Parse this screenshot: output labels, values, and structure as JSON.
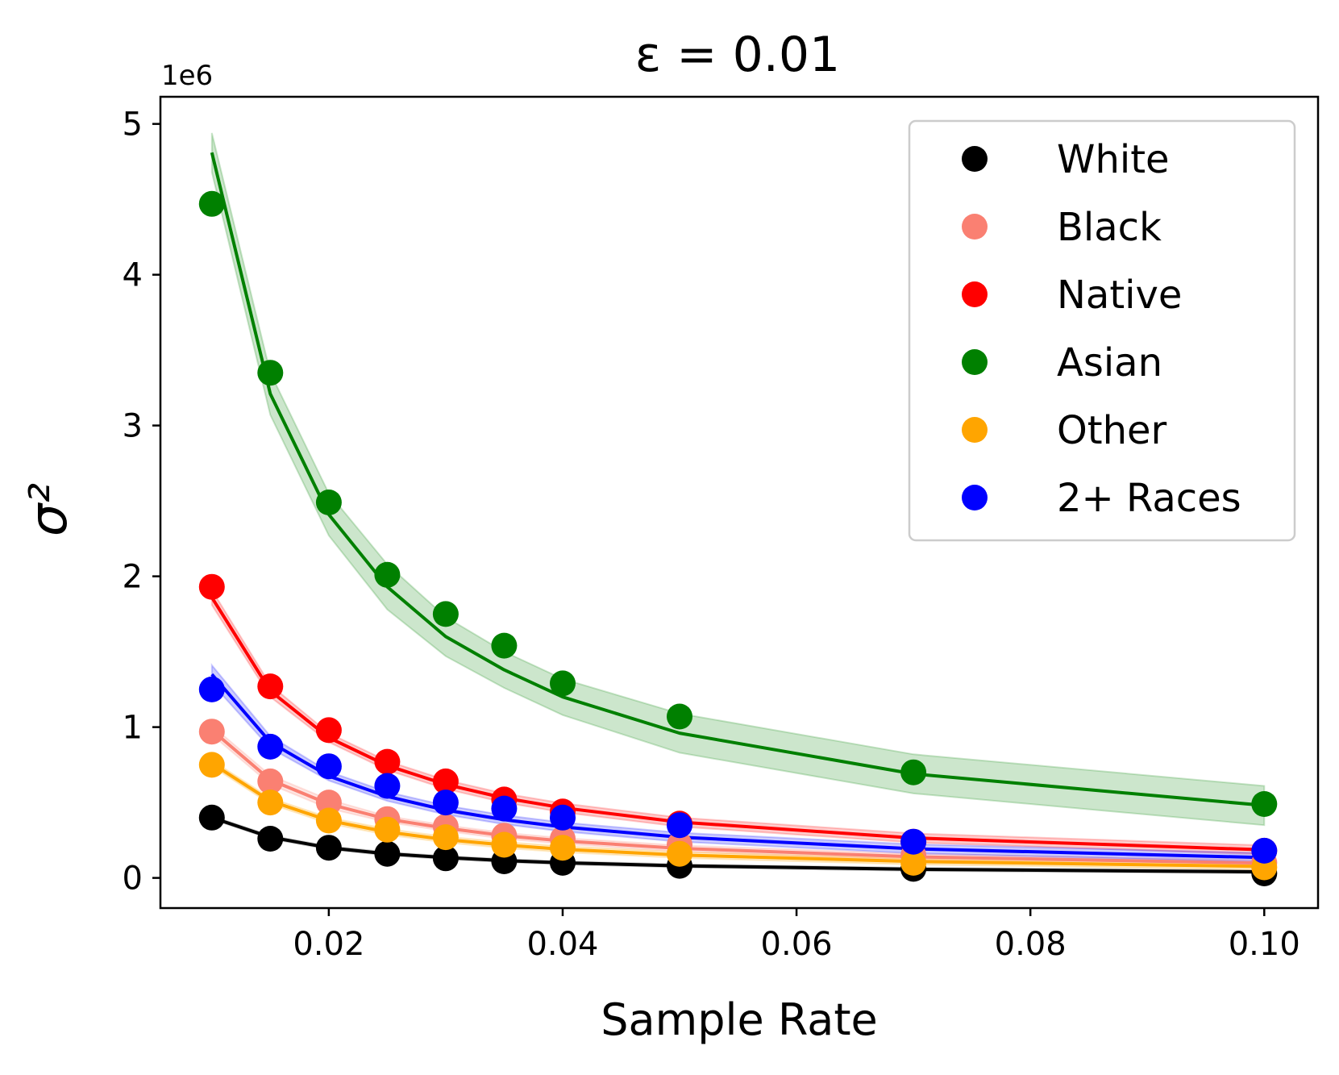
{
  "chart_data": {
    "type": "line",
    "title": "ε = 0.01",
    "xlabel": "Sample Rate",
    "ylabel": "σ²",
    "y_offset_label": "1e6",
    "xlim": [
      0.0056,
      0.1046
    ],
    "ylim": [
      -0.2,
      5.18
    ],
    "xticks": [
      0.02,
      0.04,
      0.06,
      0.08,
      0.1
    ],
    "xtick_labels": [
      "0.02",
      "0.04",
      "0.06",
      "0.08",
      "0.10"
    ],
    "yticks": [
      0,
      1,
      2,
      3,
      4,
      5
    ],
    "ytick_labels": [
      "0",
      "1",
      "2",
      "3",
      "4",
      "5"
    ],
    "legend_position": "top-right",
    "x": [
      0.01,
      0.015,
      0.02,
      0.025,
      0.03,
      0.035,
      0.04,
      0.05,
      0.07,
      0.1
    ],
    "series": [
      {
        "name": "White",
        "color": "#000000",
        "points": [
          0.4,
          0.26,
          0.2,
          0.16,
          0.13,
          0.11,
          0.1,
          0.08,
          0.06,
          0.03
        ],
        "fit": [
          0.4,
          0.27,
          0.2,
          0.16,
          0.135,
          0.115,
          0.1,
          0.08,
          0.057,
          0.04
        ],
        "band": [
          0.01,
          0.01,
          0.01,
          0.01,
          0.01,
          0.01,
          0.01,
          0.01,
          0.01,
          0.01
        ]
      },
      {
        "name": "Black",
        "color": "#fa8072",
        "points": [
          0.97,
          0.64,
          0.5,
          0.39,
          0.34,
          0.28,
          0.26,
          0.22,
          0.15,
          0.1
        ],
        "fit": [
          0.98,
          0.65,
          0.49,
          0.39,
          0.33,
          0.28,
          0.245,
          0.196,
          0.14,
          0.098
        ],
        "band": [
          0.03,
          0.03,
          0.03,
          0.02,
          0.02,
          0.02,
          0.02,
          0.02,
          0.02,
          0.02
        ]
      },
      {
        "name": "Native",
        "color": "#ff0000",
        "points": [
          1.93,
          1.27,
          0.98,
          0.77,
          0.64,
          0.52,
          0.44,
          0.36,
          0.24,
          0.18
        ],
        "fit": [
          1.86,
          1.24,
          0.93,
          0.745,
          0.62,
          0.53,
          0.465,
          0.37,
          0.265,
          0.186
        ],
        "band": [
          0.05,
          0.04,
          0.03,
          0.03,
          0.03,
          0.03,
          0.03,
          0.03,
          0.03,
          0.03
        ]
      },
      {
        "name": "Asian",
        "color": "#008000",
        "points": [
          4.47,
          3.35,
          2.49,
          2.01,
          1.75,
          1.54,
          1.29,
          1.07,
          0.7,
          0.49
        ],
        "fit": [
          4.81,
          3.21,
          2.41,
          1.93,
          1.6,
          1.38,
          1.2,
          0.96,
          0.69,
          0.48
        ],
        "band": [
          0.13,
          0.14,
          0.14,
          0.15,
          0.13,
          0.12,
          0.12,
          0.13,
          0.13,
          0.13
        ]
      },
      {
        "name": "Other",
        "color": "#ffa500",
        "points": [
          0.75,
          0.5,
          0.38,
          0.32,
          0.27,
          0.22,
          0.2,
          0.16,
          0.1,
          0.07
        ],
        "fit": [
          0.76,
          0.51,
          0.38,
          0.305,
          0.254,
          0.218,
          0.19,
          0.152,
          0.109,
          0.076
        ],
        "band": [
          0.02,
          0.02,
          0.02,
          0.02,
          0.02,
          0.02,
          0.02,
          0.02,
          0.02,
          0.02
        ]
      },
      {
        "name": "2+ Races",
        "color": "#0000ff",
        "points": [
          1.25,
          0.87,
          0.74,
          0.61,
          0.5,
          0.46,
          0.4,
          0.35,
          0.24,
          0.18
        ],
        "fit": [
          1.35,
          0.9,
          0.675,
          0.54,
          0.45,
          0.386,
          0.338,
          0.27,
          0.193,
          0.135
        ],
        "band": [
          0.06,
          0.04,
          0.03,
          0.03,
          0.03,
          0.03,
          0.03,
          0.03,
          0.03,
          0.03
        ]
      }
    ]
  }
}
